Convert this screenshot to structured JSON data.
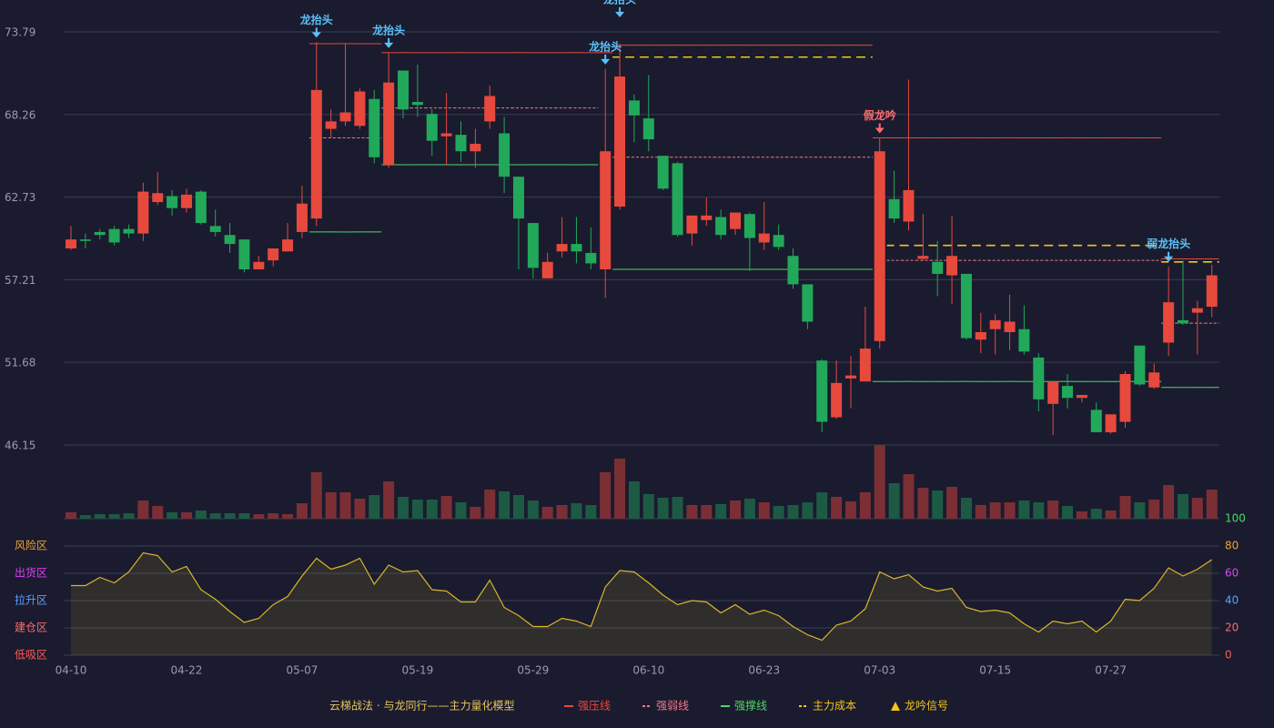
{
  "chart_data": {
    "type": "candlestick",
    "categories": [
      "04-10",
      null,
      null,
      null,
      null,
      null,
      null,
      null,
      "04-22",
      null,
      null,
      null,
      null,
      null,
      null,
      null,
      "05-07",
      null,
      null,
      null,
      null,
      null,
      null,
      null,
      "05-19",
      null,
      null,
      null,
      null,
      null,
      null,
      null,
      "05-29",
      null,
      null,
      null,
      null,
      null,
      null,
      null,
      "06-10",
      null,
      null,
      null,
      null,
      null,
      null,
      null,
      "06-23",
      null,
      null,
      null,
      null,
      null,
      null,
      null,
      "07-03",
      null,
      null,
      null,
      null,
      null,
      null,
      null,
      "07-15",
      null,
      null,
      null,
      null,
      null,
      null,
      null,
      "07-27",
      null,
      null,
      null,
      null,
      null,
      null,
      null
    ],
    "ylim": [
      46.15,
      73.79
    ],
    "yticks": [
      46.15,
      51.68,
      57.21,
      62.73,
      68.26,
      73.79
    ],
    "up_color": "#e8493d",
    "down_color": "#22a85a",
    "ohlc": [
      [
        59.3,
        60.8,
        59.2,
        59.9
      ],
      [
        59.9,
        60.3,
        59.3,
        59.8
      ],
      [
        60.4,
        60.6,
        59.9,
        60.2
      ],
      [
        60.6,
        60.8,
        59.5,
        59.7
      ],
      [
        60.6,
        60.9,
        60.0,
        60.3
      ],
      [
        60.3,
        63.7,
        59.8,
        63.1
      ],
      [
        62.4,
        64.4,
        62.2,
        63.0
      ],
      [
        62.8,
        63.2,
        61.5,
        62.0
      ],
      [
        62.0,
        63.3,
        61.7,
        62.9
      ],
      [
        63.1,
        63.2,
        60.9,
        61.0
      ],
      [
        60.8,
        61.9,
        60.1,
        60.4
      ],
      [
        60.2,
        61.0,
        59.0,
        59.6
      ],
      [
        59.9,
        59.9,
        57.7,
        57.9
      ],
      [
        57.9,
        58.8,
        57.9,
        58.4
      ],
      [
        58.5,
        59.3,
        58.1,
        59.3
      ],
      [
        59.1,
        61.0,
        59.1,
        59.9
      ],
      [
        60.4,
        63.5,
        60.0,
        62.3
      ],
      [
        61.3,
        73.1,
        60.8,
        69.9
      ],
      [
        67.3,
        68.6,
        66.7,
        67.8
      ],
      [
        67.8,
        73.0,
        67.5,
        68.4
      ],
      [
        67.5,
        70.0,
        67.3,
        69.8
      ],
      [
        69.3,
        69.9,
        65.0,
        65.4
      ],
      [
        64.9,
        72.4,
        64.7,
        70.4
      ],
      [
        71.2,
        71.2,
        68.0,
        68.6
      ],
      [
        69.1,
        71.6,
        68.1,
        68.9
      ],
      [
        68.3,
        68.6,
        65.5,
        66.5
      ],
      [
        66.8,
        69.7,
        64.9,
        67.0
      ],
      [
        66.9,
        67.8,
        65.1,
        65.8
      ],
      [
        65.8,
        67.3,
        64.7,
        66.3
      ],
      [
        67.8,
        70.2,
        67.3,
        69.5
      ],
      [
        67.0,
        68.1,
        63.0,
        64.1
      ],
      [
        64.1,
        64.1,
        57.9,
        61.3
      ],
      [
        61.0,
        61.0,
        57.3,
        58.0
      ],
      [
        57.3,
        59.0,
        57.3,
        58.4
      ],
      [
        59.1,
        61.4,
        58.7,
        59.6
      ],
      [
        59.6,
        61.4,
        58.3,
        59.1
      ],
      [
        59.0,
        60.7,
        57.9,
        58.3
      ],
      [
        57.9,
        71.3,
        56.0,
        65.8
      ],
      [
        62.1,
        73.0,
        61.9,
        70.8
      ],
      [
        69.2,
        69.6,
        66.4,
        68.2
      ],
      [
        68.0,
        70.9,
        65.8,
        66.6
      ],
      [
        65.5,
        65.5,
        63.2,
        63.3
      ],
      [
        65.0,
        65.1,
        60.1,
        60.2
      ],
      [
        60.3,
        61.5,
        59.5,
        61.5
      ],
      [
        61.2,
        62.7,
        60.8,
        61.5
      ],
      [
        61.4,
        61.9,
        59.9,
        60.2
      ],
      [
        60.6,
        61.7,
        60.2,
        61.7
      ],
      [
        61.6,
        61.7,
        57.8,
        60.0
      ],
      [
        59.7,
        62.4,
        59.2,
        60.3
      ],
      [
        60.2,
        60.9,
        59.2,
        59.4
      ],
      [
        58.8,
        59.3,
        56.6,
        56.9
      ],
      [
        56.9,
        56.9,
        53.9,
        54.4
      ],
      [
        51.8,
        51.9,
        47.0,
        47.7
      ],
      [
        48.0,
        51.8,
        47.9,
        50.3
      ],
      [
        50.6,
        52.1,
        48.6,
        50.8
      ],
      [
        50.4,
        55.4,
        50.4,
        52.6
      ],
      [
        53.1,
        66.7,
        52.6,
        65.8
      ],
      [
        62.6,
        64.5,
        61.0,
        61.3
      ],
      [
        61.1,
        70.6,
        60.5,
        63.2
      ],
      [
        58.6,
        61.6,
        58.5,
        58.8
      ],
      [
        58.4,
        59.8,
        56.1,
        57.6
      ],
      [
        57.5,
        61.5,
        55.6,
        58.8
      ],
      [
        57.6,
        57.6,
        53.2,
        53.3
      ],
      [
        53.2,
        55.0,
        52.3,
        53.7
      ],
      [
        53.9,
        54.9,
        52.2,
        54.5
      ],
      [
        53.7,
        56.2,
        52.5,
        54.4
      ],
      [
        53.9,
        55.5,
        52.2,
        52.4
      ],
      [
        52.0,
        52.3,
        48.4,
        49.2
      ],
      [
        48.9,
        50.4,
        46.8,
        50.4
      ],
      [
        50.1,
        50.9,
        48.6,
        49.3
      ],
      [
        49.3,
        49.5,
        49.0,
        49.5
      ],
      [
        48.5,
        49.0,
        47.0,
        47.0
      ],
      [
        47.0,
        48.2,
        46.9,
        48.2
      ],
      [
        47.7,
        51.1,
        47.3,
        50.9
      ],
      [
        52.8,
        52.8,
        50.1,
        50.2
      ],
      [
        50.0,
        51.6,
        49.9,
        51.0
      ],
      [
        53.0,
        58.1,
        52.1,
        55.7
      ],
      [
        54.5,
        58.5,
        54.2,
        54.3
      ],
      [
        55.0,
        55.8,
        52.2,
        55.3
      ],
      [
        55.4,
        58.2,
        54.7,
        57.5
      ]
    ],
    "volume": {
      "up_color": "#7b2f35",
      "down_color": "#1d5a44",
      "values": [
        7,
        4,
        5,
        5,
        6,
        20,
        14,
        7,
        7,
        9,
        6,
        6,
        6,
        5,
        6,
        5,
        17,
        51,
        29,
        29,
        22,
        26,
        41,
        24,
        21,
        21,
        25,
        18,
        13,
        32,
        30,
        26,
        20,
        13,
        15,
        17,
        15,
        51,
        66,
        41,
        27,
        23,
        24,
        15,
        15,
        16,
        20,
        22,
        18,
        14,
        15,
        18,
        29,
        24,
        19,
        29,
        81,
        39,
        49,
        34,
        31,
        35,
        23,
        15,
        18,
        18,
        20,
        18,
        20,
        14,
        8,
        11,
        9,
        25,
        18,
        21,
        37,
        27,
        23,
        32
      ]
    },
    "levels": [
      {
        "name": "强压线",
        "color": "#e8493d",
        "dash": false,
        "values": [
          null,
          null,
          null,
          null,
          null,
          null,
          null,
          null,
          null,
          null,
          null,
          null,
          null,
          null,
          null,
          null,
          null,
          73.0,
          73.0,
          73.0,
          73.0,
          73.0,
          72.4,
          72.4,
          72.4,
          72.4,
          72.4,
          72.4,
          72.4,
          72.4,
          72.4,
          72.4,
          72.4,
          72.4,
          72.4,
          72.4,
          72.4,
          72.4,
          72.9,
          72.9,
          72.9,
          72.9,
          72.9,
          72.9,
          72.9,
          72.9,
          72.9,
          72.9,
          72.9,
          72.9,
          72.9,
          72.9,
          72.9,
          72.9,
          72.9,
          72.9,
          66.7,
          66.7,
          66.7,
          66.7,
          66.7,
          66.7,
          66.7,
          66.7,
          66.7,
          66.7,
          66.7,
          66.7,
          66.7,
          66.7,
          66.7,
          66.7,
          66.7,
          66.7,
          66.7,
          66.7,
          58.6,
          58.6,
          58.6,
          58.6
        ]
      },
      {
        "name": "强弱线",
        "color": "#f07a8a",
        "dash": "3 2",
        "values": [
          null,
          null,
          null,
          null,
          null,
          null,
          null,
          null,
          null,
          null,
          null,
          null,
          null,
          null,
          null,
          null,
          null,
          66.7,
          66.7,
          66.7,
          66.7,
          66.7,
          68.7,
          68.7,
          68.7,
          68.7,
          68.7,
          68.7,
          68.7,
          68.7,
          68.7,
          68.7,
          68.7,
          68.7,
          68.7,
          68.7,
          68.7,
          null,
          65.4,
          65.4,
          65.4,
          65.4,
          65.4,
          65.4,
          65.4,
          65.4,
          65.4,
          65.4,
          65.4,
          65.4,
          65.4,
          65.4,
          65.4,
          65.4,
          65.4,
          65.4,
          null,
          58.5,
          58.5,
          58.5,
          58.5,
          58.5,
          58.5,
          58.5,
          58.5,
          58.5,
          58.5,
          58.5,
          58.5,
          58.5,
          58.5,
          58.5,
          58.5,
          58.5,
          58.5,
          58.5,
          54.3,
          54.3,
          54.3,
          54.3
        ]
      },
      {
        "name": "强撑线",
        "color": "#4cd964",
        "dash": false,
        "values": [
          null,
          null,
          null,
          null,
          null,
          null,
          null,
          null,
          null,
          null,
          null,
          null,
          null,
          null,
          null,
          null,
          null,
          60.4,
          60.4,
          60.4,
          60.4,
          60.4,
          64.9,
          64.9,
          64.9,
          64.9,
          64.9,
          64.9,
          64.9,
          64.9,
          64.9,
          64.9,
          64.9,
          64.9,
          64.9,
          64.9,
          64.9,
          null,
          57.9,
          57.9,
          57.9,
          57.9,
          57.9,
          57.9,
          57.9,
          57.9,
          57.9,
          57.9,
          57.9,
          57.9,
          57.9,
          57.9,
          57.9,
          57.9,
          57.9,
          57.9,
          50.4,
          50.4,
          50.4,
          50.4,
          50.4,
          50.4,
          50.4,
          50.4,
          50.4,
          50.4,
          50.4,
          50.4,
          50.4,
          50.4,
          50.4,
          50.4,
          50.4,
          50.4,
          50.4,
          50.4,
          50.0,
          50.0,
          50.0,
          50.0
        ]
      },
      {
        "name": "主力成本",
        "color": "#f5c518",
        "dash": "8 6",
        "values": [
          null,
          null,
          null,
          null,
          null,
          null,
          null,
          null,
          null,
          null,
          null,
          null,
          null,
          null,
          null,
          null,
          null,
          null,
          null,
          null,
          null,
          null,
          null,
          null,
          null,
          null,
          null,
          null,
          null,
          null,
          null,
          null,
          null,
          null,
          null,
          null,
          null,
          null,
          72.1,
          72.1,
          72.1,
          72.1,
          72.1,
          72.1,
          72.1,
          72.1,
          72.1,
          72.1,
          72.1,
          72.1,
          72.1,
          72.1,
          72.1,
          72.1,
          72.1,
          72.1,
          null,
          59.5,
          59.5,
          59.5,
          59.5,
          59.5,
          59.5,
          59.5,
          59.5,
          59.5,
          59.5,
          59.5,
          59.5,
          59.5,
          59.5,
          59.5,
          59.5,
          59.5,
          59.5,
          59.5,
          58.4,
          58.4,
          58.4,
          58.4
        ]
      }
    ],
    "annotations": [
      {
        "text": "龙抬头",
        "index": 17,
        "color": "#5bc0f8"
      },
      {
        "text": "龙抬头",
        "index": 22,
        "color": "#5bc0f8"
      },
      {
        "text": "龙抬头",
        "index": 37,
        "color": "#5bc0f8"
      },
      {
        "text": "龙抬头",
        "index": 38,
        "color": "#5bc0f8"
      },
      {
        "text": "假龙吟",
        "index": 56,
        "color": "#ff6b6b"
      },
      {
        "text": "弱龙抬头",
        "index": 76,
        "color": "#5bc0f8"
      }
    ],
    "indicator": {
      "color": "#d8b62a",
      "ylim": [
        0,
        100
      ],
      "yticks": [
        0,
        20,
        40,
        60,
        80,
        100
      ],
      "ytick_colors": [
        "#ff5a5a",
        "#ff6b6b",
        "#5aa0ff",
        "#e040fb",
        "#f0a030",
        "#4cd964"
      ],
      "zones": [
        {
          "label": "风险区",
          "value": 80,
          "color": "#f0a030"
        },
        {
          "label": "出货区",
          "value": 60,
          "color": "#e040fb"
        },
        {
          "label": "拉升区",
          "value": 40,
          "color": "#5aa0ff"
        },
        {
          "label": "建仓区",
          "value": 20,
          "color": "#ff6b6b"
        },
        {
          "label": "低吸区",
          "value": 0,
          "color": "#ff5a5a"
        }
      ],
      "values": [
        51,
        51,
        57,
        53,
        61,
        75,
        73,
        61,
        65,
        48,
        41,
        32,
        24,
        27,
        37,
        43,
        58,
        71,
        63,
        66,
        71,
        52,
        66,
        61,
        62,
        48,
        47,
        39,
        39,
        55,
        35,
        29,
        21,
        21,
        27,
        25,
        21,
        50,
        62,
        61,
        53,
        44,
        37,
        40,
        39,
        31,
        37,
        30,
        33,
        29,
        21,
        15,
        11,
        22,
        25,
        34,
        61,
        56,
        59,
        50,
        47,
        49,
        35,
        32,
        33,
        31,
        23,
        17,
        25,
        23,
        25,
        17,
        25,
        41,
        40,
        49,
        64,
        58,
        63,
        70
      ]
    },
    "legend_title": "云梯战法 · 与龙同行——主力量化模型",
    "legend_signal": {
      "name": "龙吟信号",
      "color": "#f5c518"
    }
  }
}
